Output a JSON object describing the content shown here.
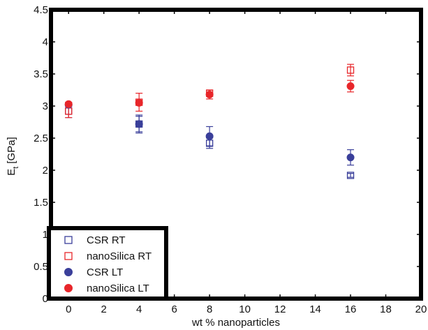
{
  "chart_data": {
    "type": "scatter",
    "xlabel": "wt % nanoparticles",
    "ylabel_main": "E",
    "ylabel_sub": "t",
    "ylabel_unit": "[GPa]",
    "xlim": [
      -1,
      20
    ],
    "ylim": [
      0,
      4.5
    ],
    "xticks": [
      0,
      2,
      4,
      6,
      8,
      10,
      12,
      14,
      16,
      18,
      20
    ],
    "yticks": [
      0,
      0.5,
      1,
      1.5,
      2,
      2.5,
      3,
      3.5,
      4,
      4.5
    ],
    "xtick_labels": [
      "0",
      "2",
      "4",
      "6",
      "8",
      "10",
      "12",
      "14",
      "16",
      "18",
      "20"
    ],
    "ytick_labels": [
      "0",
      "0.5",
      "1",
      "1.5",
      "2",
      "2.5",
      "3",
      "3.5",
      "4",
      "4.5"
    ],
    "grid": false,
    "legend_position": "bottom-left",
    "series": [
      {
        "name": "CSR RT",
        "marker": "open-square",
        "color": "#3a3f9a",
        "x": [
          0,
          4,
          8,
          16
        ],
        "y": [
          2.92,
          2.72,
          2.42,
          1.92
        ],
        "err": [
          0.1,
          0.12,
          0.08,
          0.03
        ]
      },
      {
        "name": "nanoSilica RT",
        "marker": "open-square",
        "color": "#e8262a",
        "x": [
          0,
          4,
          8,
          16
        ],
        "y": [
          2.92,
          3.06,
          3.2,
          3.56
        ],
        "err": [
          0.1,
          0.14,
          0.05,
          0.09
        ]
      },
      {
        "name": "CSR LT",
        "marker": "filled-circle",
        "color": "#3a3f9a",
        "x": [
          0,
          4,
          8,
          16
        ],
        "y": [
          3.02,
          2.72,
          2.53,
          2.2
        ],
        "err": [
          0.03,
          0.14,
          0.15,
          0.12
        ]
      },
      {
        "name": "nanoSilica LT",
        "marker": "filled-circle",
        "color": "#e8262a",
        "x": [
          0,
          4,
          8,
          16
        ],
        "y": [
          3.03,
          3.05,
          3.18,
          3.31
        ],
        "err": [
          0.03,
          0.04,
          0.07,
          0.09
        ]
      }
    ]
  }
}
